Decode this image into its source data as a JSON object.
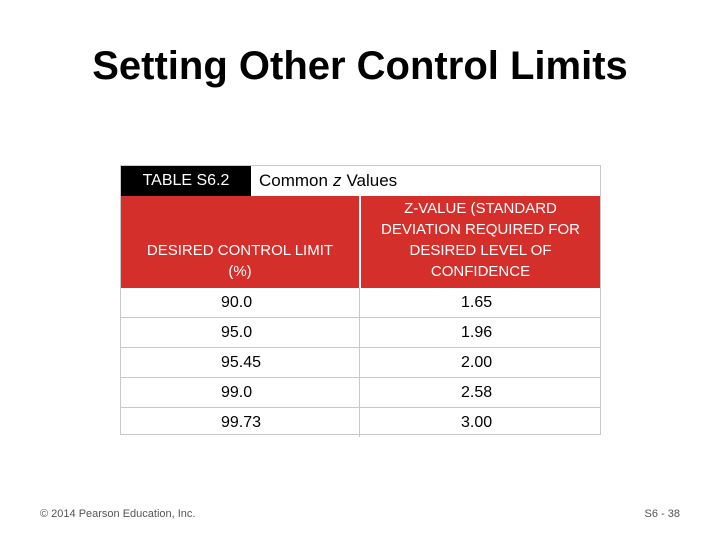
{
  "slide": {
    "title": "Setting Other Control Limits",
    "footer_left": "© 2014 Pearson Education, Inc.",
    "footer_right": "S6 - 38"
  },
  "table": {
    "label": "TABLE S6.2",
    "title_prefix": "Common",
    "title_z": "z",
    "title_suffix": "Values",
    "header_col1": "DESIRED CONTROL LIMIT (%)",
    "header_col2": "Z-VALUE (STANDARD DEVIATION REQUIRED FOR DESIRED LEVEL OF CONFIDENCE",
    "rows": [
      {
        "limit": "90.0",
        "z": "1.65"
      },
      {
        "limit": "95.0",
        "z": "1.96"
      },
      {
        "limit": "95.45",
        "z": "2.00"
      },
      {
        "limit": "99.0",
        "z": "2.58"
      },
      {
        "limit": "99.73",
        "z": "3.00"
      }
    ],
    "colors": {
      "header_bg": "#d42f2b",
      "label_bg": "#000000"
    }
  }
}
